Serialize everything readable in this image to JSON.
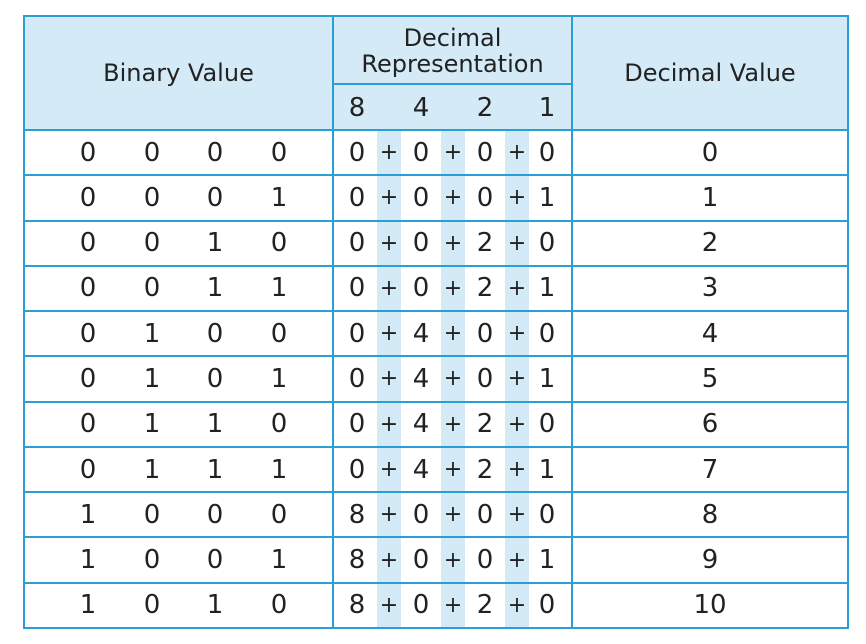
{
  "table": {
    "headers": {
      "binary": "Binary Value",
      "representation": "Decimal Representation",
      "decimal": "Decimal Value",
      "weights": [
        8,
        4,
        2,
        1
      ]
    },
    "plus": "+",
    "rows": [
      {
        "binary": [
          0,
          0,
          0,
          0
        ],
        "representation": [
          0,
          0,
          0,
          0
        ],
        "decimal": 0
      },
      {
        "binary": [
          0,
          0,
          0,
          1
        ],
        "representation": [
          0,
          0,
          0,
          1
        ],
        "decimal": 1
      },
      {
        "binary": [
          0,
          0,
          1,
          0
        ],
        "representation": [
          0,
          0,
          2,
          0
        ],
        "decimal": 2
      },
      {
        "binary": [
          0,
          0,
          1,
          1
        ],
        "representation": [
          0,
          0,
          2,
          1
        ],
        "decimal": 3
      },
      {
        "binary": [
          0,
          1,
          0,
          0
        ],
        "representation": [
          0,
          4,
          0,
          0
        ],
        "decimal": 4
      },
      {
        "binary": [
          0,
          1,
          0,
          1
        ],
        "representation": [
          0,
          4,
          0,
          1
        ],
        "decimal": 5
      },
      {
        "binary": [
          0,
          1,
          1,
          0
        ],
        "representation": [
          0,
          4,
          2,
          0
        ],
        "decimal": 6
      },
      {
        "binary": [
          0,
          1,
          1,
          1
        ],
        "representation": [
          0,
          4,
          2,
          1
        ],
        "decimal": 7
      },
      {
        "binary": [
          1,
          0,
          0,
          0
        ],
        "representation": [
          8,
          0,
          0,
          0
        ],
        "decimal": 8
      },
      {
        "binary": [
          1,
          0,
          0,
          1
        ],
        "representation": [
          8,
          0,
          0,
          1
        ],
        "decimal": 9
      },
      {
        "binary": [
          1,
          0,
          1,
          0
        ],
        "representation": [
          8,
          0,
          2,
          0
        ],
        "decimal": 10
      }
    ]
  }
}
